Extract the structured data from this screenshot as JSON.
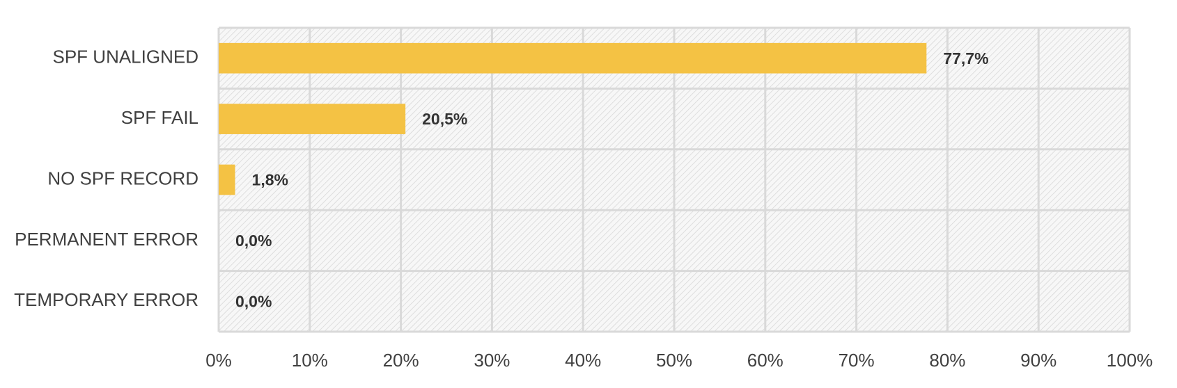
{
  "chart_data": {
    "type": "hbar",
    "categories": [
      "SPF UNALIGNED",
      "SPF FAIL",
      "NO SPF RECORD",
      "PERMANENT ERROR",
      "TEMPORARY ERROR"
    ],
    "values": [
      77.7,
      20.5,
      1.8,
      0,
      0
    ],
    "value_labels": [
      "77,7%",
      "20,5%",
      "1,8%",
      "0,0%",
      "0,0%"
    ],
    "color": "#f4c244",
    "xlim": [
      0,
      100
    ],
    "xticks": [
      {
        "value": 0,
        "label": "0%"
      },
      {
        "value": 10,
        "label": "10%"
      },
      {
        "value": 20,
        "label": "20%"
      },
      {
        "value": 30,
        "label": "30%"
      },
      {
        "value": 40,
        "label": "40%"
      },
      {
        "value": 50,
        "label": "50%"
      },
      {
        "value": 60,
        "label": "60%"
      },
      {
        "value": 70,
        "label": "70%"
      },
      {
        "value": 80,
        "label": "80%"
      },
      {
        "value": 90,
        "label": "90%"
      },
      {
        "value": 100,
        "label": "100%"
      }
    ],
    "grid": true
  }
}
